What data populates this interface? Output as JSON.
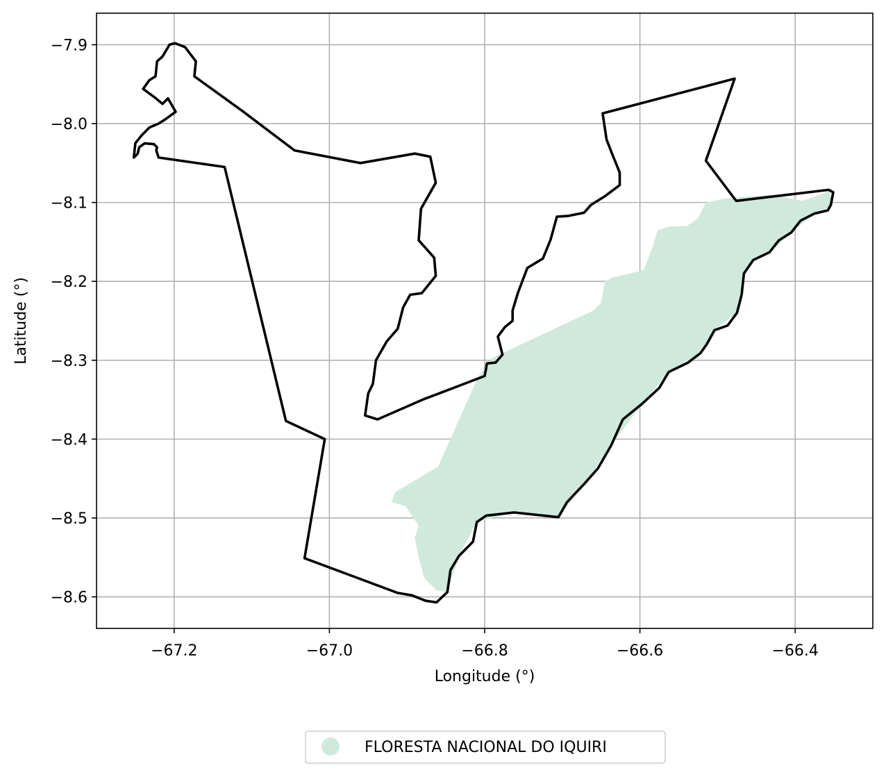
{
  "chart_data": {
    "type": "map",
    "xlabel": "Longitude (°)",
    "ylabel": "Latitude (°)",
    "xlim": [
      -67.3,
      -66.3
    ],
    "ylim": [
      -8.64,
      -7.86
    ],
    "grid": true,
    "x_ticks": [
      -67.2,
      -67.0,
      -66.8,
      -66.6,
      -66.4
    ],
    "y_ticks": [
      -7.9,
      -8.0,
      -8.1,
      -8.2,
      -8.3,
      -8.4,
      -8.5,
      -8.6
    ],
    "x_tick_labels": [
      "−67.2",
      "−67.0",
      "−66.8",
      "−66.6",
      "−66.4"
    ],
    "y_tick_labels": [
      "−7.9",
      "−8.0",
      "−8.1",
      "−8.2",
      "−8.3",
      "−8.4",
      "−8.5",
      "−8.6"
    ],
    "legend": {
      "position": "bottom-center",
      "entries": [
        {
          "label": "FLORESTA NACIONAL DO IQUIRI",
          "color": "#cfeadd",
          "marker": "circle"
        }
      ]
    },
    "colors": {
      "boundary": "#000000",
      "area_fill": "#cfeadd",
      "grid": "#b0b0b0"
    },
    "boundary_outline": [
      [
        -67.199,
        -7.898
      ],
      [
        -67.186,
        -7.903
      ],
      [
        -67.172,
        -7.921
      ],
      [
        -67.174,
        -7.94
      ],
      [
        -67.112,
        -7.984
      ],
      [
        -67.045,
        -8.034
      ],
      [
        -66.96,
        -8.05
      ],
      [
        -66.89,
        -8.038
      ],
      [
        -66.87,
        -8.042
      ],
      [
        -66.863,
        -8.075
      ],
      [
        -66.882,
        -8.108
      ],
      [
        -66.885,
        -8.148
      ],
      [
        -66.865,
        -8.17
      ],
      [
        -66.863,
        -8.193
      ],
      [
        -66.881,
        -8.215
      ],
      [
        -66.896,
        -8.217
      ],
      [
        -66.905,
        -8.233
      ],
      [
        -66.912,
        -8.26
      ],
      [
        -66.926,
        -8.276
      ],
      [
        -66.94,
        -8.3
      ],
      [
        -66.944,
        -8.33
      ],
      [
        -66.95,
        -8.342
      ],
      [
        -66.954,
        -8.37
      ],
      [
        -66.938,
        -8.375
      ],
      [
        -66.88,
        -8.35
      ],
      [
        -66.8,
        -8.32
      ],
      [
        -66.797,
        -8.304
      ],
      [
        -66.786,
        -8.303
      ],
      [
        -66.777,
        -8.293
      ],
      [
        -66.783,
        -8.27
      ],
      [
        -66.774,
        -8.258
      ],
      [
        -66.764,
        -8.25
      ],
      [
        -66.764,
        -8.237
      ],
      [
        -66.757,
        -8.214
      ],
      [
        -66.745,
        -8.183
      ],
      [
        -66.725,
        -8.171
      ],
      [
        -66.715,
        -8.147
      ],
      [
        -66.707,
        -8.118
      ],
      [
        -66.692,
        -8.117
      ],
      [
        -66.672,
        -8.113
      ],
      [
        -66.663,
        -8.103
      ],
      [
        -66.645,
        -8.092
      ],
      [
        -66.626,
        -8.078
      ],
      [
        -66.626,
        -8.062
      ],
      [
        -66.636,
        -8.038
      ],
      [
        -66.643,
        -8.02
      ],
      [
        -66.648,
        -7.987
      ],
      [
        -66.478,
        -7.943
      ],
      [
        -66.515,
        -8.047
      ],
      [
        -66.476,
        -8.098
      ],
      [
        -66.357,
        -8.084
      ],
      [
        -66.351,
        -8.087
      ],
      [
        -66.354,
        -8.103
      ],
      [
        -66.358,
        -8.11
      ],
      [
        -66.375,
        -8.114
      ],
      [
        -66.393,
        -8.123
      ],
      [
        -66.405,
        -8.138
      ],
      [
        -66.421,
        -8.148
      ],
      [
        -66.433,
        -8.163
      ],
      [
        -66.454,
        -8.173
      ],
      [
        -66.466,
        -8.19
      ],
      [
        -66.469,
        -8.217
      ],
      [
        -66.475,
        -8.24
      ],
      [
        -66.487,
        -8.256
      ],
      [
        -66.504,
        -8.262
      ],
      [
        -66.514,
        -8.28
      ],
      [
        -66.522,
        -8.291
      ],
      [
        -66.538,
        -8.303
      ],
      [
        -66.563,
        -8.315
      ],
      [
        -66.575,
        -8.335
      ],
      [
        -66.597,
        -8.355
      ],
      [
        -66.622,
        -8.375
      ],
      [
        -66.637,
        -8.408
      ],
      [
        -66.654,
        -8.437
      ],
      [
        -66.671,
        -8.456
      ],
      [
        -66.694,
        -8.48
      ],
      [
        -66.705,
        -8.499
      ],
      [
        -66.762,
        -8.493
      ],
      [
        -66.798,
        -8.497
      ],
      [
        -66.81,
        -8.505
      ],
      [
        -66.815,
        -8.53
      ],
      [
        -66.833,
        -8.548
      ],
      [
        -66.844,
        -8.566
      ],
      [
        -66.848,
        -8.594
      ],
      [
        -66.862,
        -8.607
      ],
      [
        -66.876,
        -8.605
      ],
      [
        -66.894,
        -8.598
      ],
      [
        -66.912,
        -8.595
      ],
      [
        -67.032,
        -8.551
      ],
      [
        -67.006,
        -8.4
      ],
      [
        -67.056,
        -8.377
      ],
      [
        -67.135,
        -8.055
      ],
      [
        -67.22,
        -8.043
      ],
      [
        -67.223,
        -8.034
      ],
      [
        -67.222,
        -8.03
      ],
      [
        -67.226,
        -8.026
      ],
      [
        -67.238,
        -8.025
      ],
      [
        -67.245,
        -8.03
      ],
      [
        -67.247,
        -8.038
      ],
      [
        -67.252,
        -8.043
      ],
      [
        -67.25,
        -8.025
      ],
      [
        -67.242,
        -8.015
      ],
      [
        -67.232,
        -8.005
      ],
      [
        -67.22,
        -8.0
      ],
      [
        -67.212,
        -7.995
      ],
      [
        -67.198,
        -7.985
      ],
      [
        -67.208,
        -7.968
      ],
      [
        -67.215,
        -7.975
      ],
      [
        -67.226,
        -7.966
      ],
      [
        -67.24,
        -7.956
      ],
      [
        -67.232,
        -7.945
      ],
      [
        -67.224,
        -7.94
      ],
      [
        -67.222,
        -7.921
      ],
      [
        -67.215,
        -7.915
      ],
      [
        -67.206,
        -7.9
      ],
      [
        -67.199,
        -7.898
      ]
    ],
    "floresta_area": [
      [
        -66.468,
        -8.093
      ],
      [
        -66.43,
        -8.09
      ],
      [
        -66.39,
        -8.098
      ],
      [
        -66.355,
        -8.085
      ],
      [
        -66.352,
        -8.105
      ],
      [
        -66.375,
        -8.114
      ],
      [
        -66.405,
        -8.138
      ],
      [
        -66.433,
        -8.163
      ],
      [
        -66.454,
        -8.173
      ],
      [
        -66.466,
        -8.19
      ],
      [
        -66.469,
        -8.217
      ],
      [
        -66.475,
        -8.24
      ],
      [
        -66.504,
        -8.262
      ],
      [
        -66.522,
        -8.291
      ],
      [
        -66.563,
        -8.315
      ],
      [
        -66.597,
        -8.355
      ],
      [
        -66.637,
        -8.408
      ],
      [
        -66.671,
        -8.456
      ],
      [
        -66.705,
        -8.499
      ],
      [
        -66.762,
        -8.493
      ],
      [
        -66.81,
        -8.505
      ],
      [
        -66.833,
        -8.548
      ],
      [
        -66.848,
        -8.594
      ],
      [
        -66.862,
        -8.592
      ],
      [
        -66.878,
        -8.576
      ],
      [
        -66.885,
        -8.55
      ],
      [
        -66.89,
        -8.525
      ],
      [
        -66.885,
        -8.51
      ],
      [
        -66.902,
        -8.485
      ],
      [
        -66.92,
        -8.48
      ],
      [
        -66.915,
        -8.467
      ],
      [
        -66.86,
        -8.435
      ],
      [
        -66.808,
        -8.32
      ],
      [
        -66.79,
        -8.297
      ],
      [
        -66.66,
        -8.237
      ],
      [
        -66.65,
        -8.227
      ],
      [
        -66.645,
        -8.2
      ],
      [
        -66.635,
        -8.195
      ],
      [
        -66.612,
        -8.19
      ],
      [
        -66.595,
        -8.185
      ],
      [
        -66.585,
        -8.16
      ],
      [
        -66.577,
        -8.135
      ],
      [
        -66.56,
        -8.13
      ],
      [
        -66.54,
        -8.13
      ],
      [
        -66.525,
        -8.12
      ],
      [
        -66.515,
        -8.1
      ],
      [
        -66.49,
        -8.095
      ]
    ]
  }
}
